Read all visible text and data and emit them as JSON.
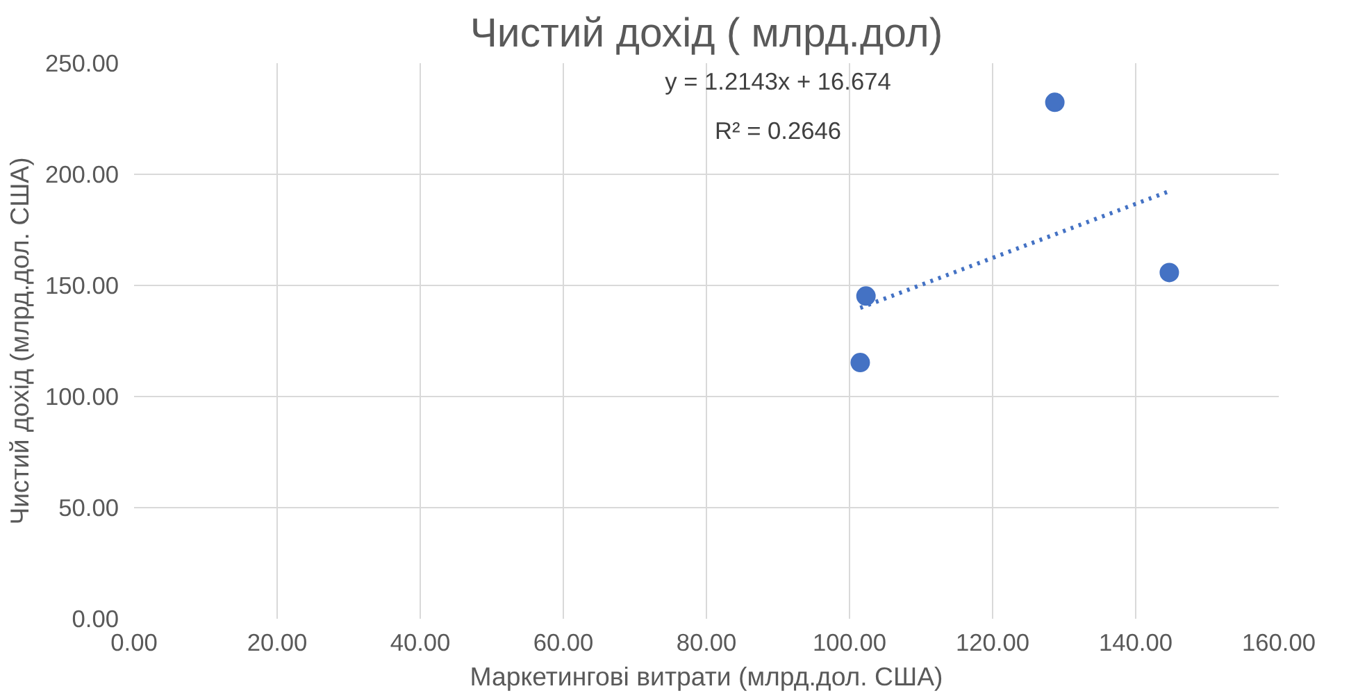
{
  "chart_data": {
    "type": "scatter",
    "title": "Чистий дохід ( млрд.дол)",
    "xlabel": "Маркетингові витрати (млрд.дол. США)",
    "ylabel": "Чистий дохід (млрд.дол. США)",
    "xlim": [
      0,
      160
    ],
    "ylim": [
      0,
      250
    ],
    "xticks": [
      {
        "value": 0,
        "label": "0.00"
      },
      {
        "value": 20,
        "label": "20.00"
      },
      {
        "value": 40,
        "label": "40.00"
      },
      {
        "value": 60,
        "label": "60.00"
      },
      {
        "value": 80,
        "label": "80.00"
      },
      {
        "value": 100,
        "label": "100.00"
      },
      {
        "value": 120,
        "label": "120.00"
      },
      {
        "value": 140,
        "label": "140.00"
      },
      {
        "value": 160,
        "label": "160.00"
      }
    ],
    "yticks": [
      {
        "value": 0,
        "label": "0.00"
      },
      {
        "value": 50,
        "label": "50.00"
      },
      {
        "value": 100,
        "label": "100.00"
      },
      {
        "value": 150,
        "label": "150.00"
      },
      {
        "value": 200,
        "label": "200.00"
      },
      {
        "value": 250,
        "label": "250.00"
      }
    ],
    "grid": true,
    "marker": "circle",
    "series": [
      {
        "color": "#4472c4",
        "x": [
          101.5,
          102.3,
          128.7,
          144.7
        ],
        "values": [
          115.3,
          145.2,
          232.4,
          155.8
        ]
      },
      {
        "type": "line",
        "color": "#4472c4",
        "line_style": "dotted",
        "marker": "none",
        "x": [
          101.5,
          144.7
        ],
        "values": [
          139.9,
          192.4
        ]
      }
    ],
    "annotations": [
      "y = 1.2143x + 16.674",
      "R² = 0.2646"
    ]
  }
}
